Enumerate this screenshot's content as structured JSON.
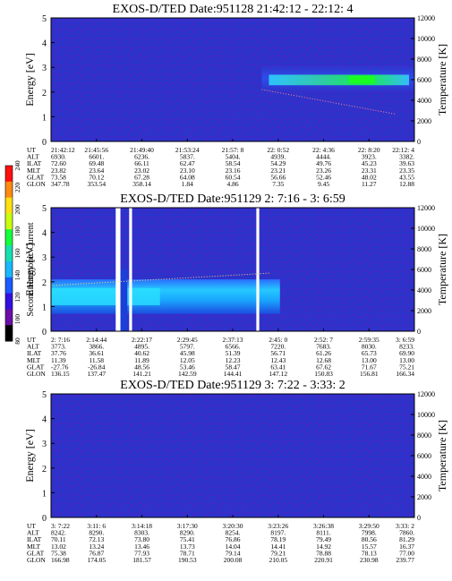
{
  "chart_data": [
    {
      "type": "heatmap",
      "title": "EXOS-D/TED   Date:951128  21:42:12 - 22:12: 4",
      "ylabel": "Energy [eV]",
      "y2label": "Temperature [K]",
      "ylim": [
        0,
        5
      ],
      "y2lim": [
        0,
        12000
      ],
      "yticks": [
        "0",
        "1",
        "2",
        "3",
        "4",
        "5"
      ],
      "y2ticks": [
        "0",
        "2000",
        "4000",
        "6000",
        "8000",
        "10000",
        "12000"
      ],
      "x_ticks": [
        "21:42:12",
        "21:45:56",
        "21:49:40",
        "21:53:24",
        "21:57: 8",
        "22: 0:52",
        "22: 4:36",
        "22: 8:20",
        "22:12: 4"
      ],
      "table": [
        {
          "label": "UT",
          "values": [
            "21:42:12",
            "21:45:56",
            "21:49:40",
            "21:53:24",
            "21:57: 8",
            "22: 0:52",
            "22: 4:36",
            "22: 8:20",
            "22:12: 4"
          ]
        },
        {
          "label": "ALT",
          "values": [
            "6930.",
            "6601.",
            "6236.",
            "5837.",
            "5404.",
            "4939.",
            "4444.",
            "3923.",
            "3382."
          ]
        },
        {
          "label": "ILAT",
          "values": [
            "72.60",
            "69.48",
            "66.11",
            "62.47",
            "58.54",
            "54.29",
            "49.76",
            "45.23",
            "39.63"
          ]
        },
        {
          "label": "MLT",
          "values": [
            "23.82",
            "23.64",
            "23.02",
            "23.10",
            "23.16",
            "23.21",
            "23.26",
            "23.31",
            "23.35"
          ]
        },
        {
          "label": "GLAT",
          "values": [
            "73.58",
            "70.12",
            "67.28",
            "64.08",
            "60.54",
            "56.66",
            "52.46",
            "48.02",
            "43.55"
          ]
        },
        {
          "label": "GLON",
          "values": [
            "347.78",
            "353.54",
            "358.14",
            "1.84",
            "4.86",
            "7.35",
            "9.45",
            "11.27",
            "12.88"
          ]
        }
      ]
    },
    {
      "type": "heatmap",
      "title": "EXOS-D/TED   Date:951129  2: 7:16 - 3: 6:59",
      "ylabel": "Energy [eV]",
      "y2label": "Temperature [K]",
      "ylim": [
        0,
        5
      ],
      "y2lim": [
        0,
        12000
      ],
      "yticks": [
        "0",
        "1",
        "2",
        "3",
        "4",
        "5"
      ],
      "y2ticks": [
        "0",
        "2000",
        "4000",
        "6000",
        "8000",
        "10000",
        "12000"
      ],
      "x_ticks": [
        "2: 7:16",
        "2:14:44",
        "2:22:17",
        "2:29:45",
        "2:37:13",
        "2:45: 0",
        "2:52: 7",
        "2:59:35",
        "3: 6:59"
      ],
      "colorbar": {
        "label": "Second Harmonic Current",
        "ticks": [
          "80",
          "100",
          "120",
          "140",
          "160",
          "180",
          "200",
          "220",
          "240"
        ]
      },
      "table": [
        {
          "label": "UT",
          "values": [
            "2: 7:16",
            "2:14:44",
            "2:22:17",
            "2:29:45",
            "2:37:13",
            "2:45: 0",
            "2:52: 7",
            "2:59:35",
            "3: 6:59"
          ]
        },
        {
          "label": "ALT",
          "values": [
            "3773.",
            "3866.",
            "4895.",
            "5797.",
            "6566.",
            "7220.",
            "7683.",
            "8030.",
            "8233."
          ]
        },
        {
          "label": "ILAT",
          "values": [
            "37.76",
            "36.61",
            "40.62",
            "45.98",
            "51.39",
            "56.71",
            "61.26",
            "65.73",
            "69.90"
          ]
        },
        {
          "label": "MLT",
          "values": [
            "11.39",
            "11.58",
            "11.89",
            "12.05",
            "12.23",
            "12.43",
            "12.68",
            "13.00",
            "13.00"
          ]
        },
        {
          "label": "GLAT",
          "values": [
            "-27.76",
            "-26.84",
            "48.56",
            "53.46",
            "58.47",
            "63.41",
            "67.62",
            "71.67",
            "75.21"
          ]
        },
        {
          "label": "GLON",
          "values": [
            "136.15",
            "137.47",
            "141.21",
            "142.59",
            "144.41",
            "147.12",
            "150.83",
            "156.81",
            "166.34"
          ]
        }
      ]
    },
    {
      "type": "heatmap",
      "title": "EXOS-D/TED   Date:951129  3: 7:22 - 3:33: 2",
      "ylabel": "Energy [eV]",
      "y2label": "Temperature [K]",
      "ylim": [
        0,
        5
      ],
      "y2lim": [
        0,
        12000
      ],
      "yticks": [
        "0",
        "1",
        "2",
        "3",
        "4",
        "5"
      ],
      "y2ticks": [
        "0",
        "2000",
        "4000",
        "6000",
        "8000",
        "10000",
        "12000"
      ],
      "x_ticks": [
        "3: 7:22",
        "3:11: 6",
        "3:14:18",
        "3:17:30",
        "3:20:30",
        "3:23:26",
        "3:26:38",
        "3:29:50",
        "3:33: 2"
      ],
      "table": [
        {
          "label": "UT",
          "values": [
            "3: 7:22",
            "3:11: 6",
            "3:14:18",
            "3:17:30",
            "3:20:30",
            "3:23:26",
            "3:26:38",
            "3:29:50",
            "3:33: 2"
          ]
        },
        {
          "label": "ALT",
          "values": [
            "8242.",
            "8290.",
            "8303.",
            "8290.",
            "8254.",
            "8197.",
            "8111.",
            "7998.",
            "7860."
          ]
        },
        {
          "label": "ILAT",
          "values": [
            "70.11",
            "72.13",
            "73.80",
            "75.41",
            "76.86",
            "78.19",
            "79.49",
            "80.56",
            "81.29"
          ]
        },
        {
          "label": "MLT",
          "values": [
            "13.02",
            "13.24",
            "13.46",
            "13.73",
            "14.04",
            "14.41",
            "14.92",
            "15.57",
            "16.37"
          ]
        },
        {
          "label": "GLAT",
          "values": [
            "75.38",
            "76.87",
            "77.93",
            "78.71",
            "79.14",
            "79.21",
            "78.88",
            "78.13",
            "77.00"
          ]
        },
        {
          "label": "GLON",
          "values": [
            "166.98",
            "174.05",
            "181.57",
            "190.53",
            "200.08",
            "210.05",
            "220.91",
            "230.98",
            "239.77"
          ]
        }
      ]
    }
  ]
}
